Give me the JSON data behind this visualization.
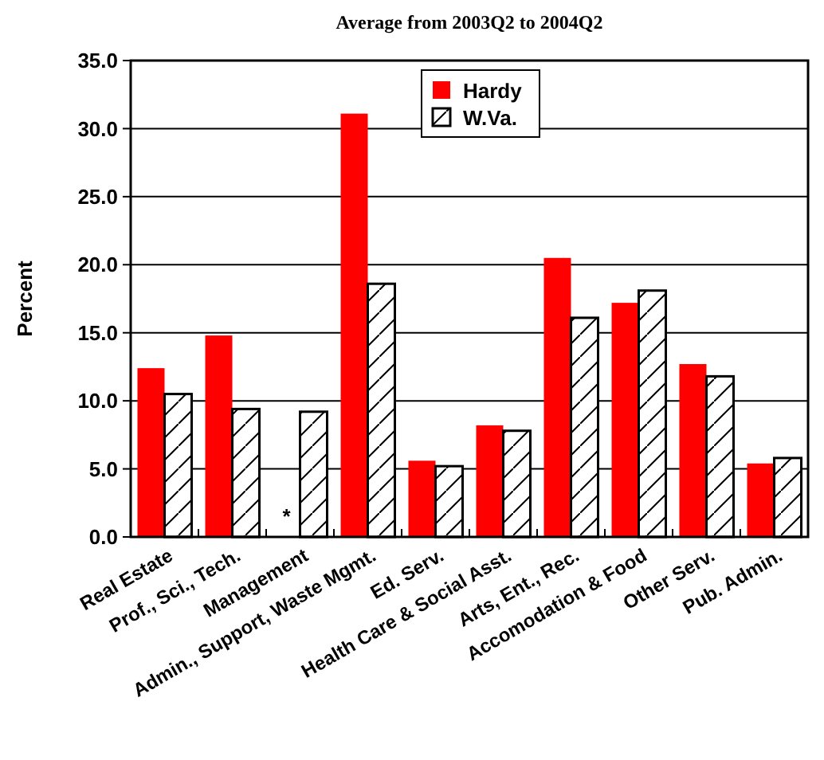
{
  "chart_data": {
    "type": "bar",
    "title": "Average from 2003Q2 to 2004Q2",
    "ylabel": "Percent",
    "categories": [
      "Real Estate",
      "Prof., Sci., Tech.",
      "Management",
      "Admin., Support, Waste Mgmt.",
      "Ed. Serv.",
      "Health Care & Social Asst.",
      "Arts, Ent., Rec.",
      "Accomodation & Food",
      "Other Serv.",
      "Pub. Admin."
    ],
    "series": [
      {
        "name": "Hardy",
        "color": "#ff0000",
        "values": [
          12.4,
          14.8,
          null,
          31.1,
          5.6,
          8.2,
          20.5,
          17.2,
          12.7,
          5.4
        ]
      },
      {
        "name": "W.Va.",
        "color": "#000000",
        "values": [
          10.5,
          9.4,
          9.2,
          18.6,
          5.2,
          7.8,
          16.1,
          18.1,
          11.8,
          5.8
        ]
      }
    ],
    "ylim": [
      0,
      35
    ],
    "yticks": [
      {
        "value": 0,
        "label": "0.0"
      },
      {
        "value": 5,
        "label": "5.0"
      },
      {
        "value": 10,
        "label": "10.0"
      },
      {
        "value": 15,
        "label": "15.0"
      },
      {
        "value": 20,
        "label": "20.0"
      },
      {
        "value": 25,
        "label": "25.0"
      },
      {
        "value": 30,
        "label": "30.0"
      },
      {
        "value": 35,
        "label": "35.0"
      }
    ],
    "grid": "y",
    "legend": "top",
    "annotations": [
      {
        "text": "*",
        "x": "Management",
        "y": 1.5
      }
    ]
  }
}
